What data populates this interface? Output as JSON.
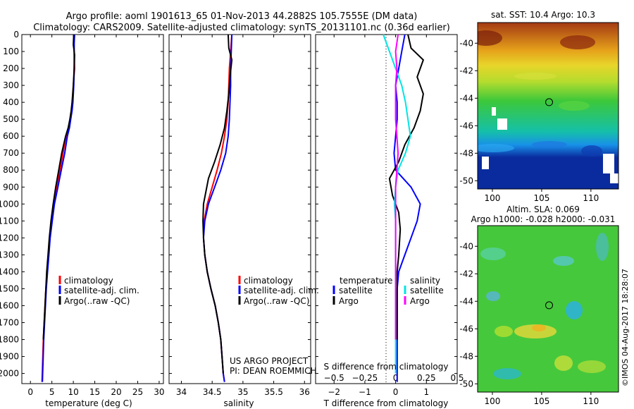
{
  "header": {
    "line1": "Argo profile: aoml 1901613_65 01-Nov-2013 44.2882S 105.7555E (DM data)",
    "line2": "Climatology: CARS2009. Satellite-adjusted climatology: synTS_20131101.nc (0.36d earlier)"
  },
  "colors": {
    "climatology": "#ff0000",
    "satellite": "#0000ff",
    "argo": "#000000",
    "satellite_s": "#00e5e5",
    "argo_s": "#ff00ff"
  },
  "chart_data": [
    {
      "id": "temperature",
      "type": "line",
      "xlabel": "temperature (deg C)",
      "ylabel": "",
      "xlim": [
        -2,
        31
      ],
      "ylim": [
        2060,
        0
      ],
      "xticks": [
        0,
        5,
        10,
        15,
        20,
        25,
        30
      ],
      "yticks": [
        0,
        100,
        200,
        300,
        400,
        500,
        600,
        700,
        800,
        900,
        1000,
        1100,
        1200,
        1300,
        1400,
        1500,
        1600,
        1700,
        1800,
        1900,
        2000
      ],
      "legend": [
        "climatology",
        "satellite-adj. clim.",
        "Argo(..raw -QC)"
      ],
      "legend_placement": "lower-center",
      "series": [
        {
          "name": "climatology",
          "color_key": "climatology",
          "x": [
            10.2,
            10.1,
            10.2,
            10.3,
            10.0,
            9.8,
            9.6,
            9.3,
            8.9,
            8.3,
            7.6,
            6.9,
            6.2,
            5.4,
            4.9,
            4.5,
            4.2,
            3.9,
            3.6,
            3.4,
            3.2,
            3.0,
            2.7
          ],
          "y": [
            0,
            50,
            100,
            200,
            300,
            400,
            450,
            500,
            550,
            600,
            700,
            800,
            900,
            1000,
            1100,
            1200,
            1300,
            1400,
            1500,
            1600,
            1700,
            1800,
            2050
          ]
        },
        {
          "name": "satellite-adj. clim.",
          "color_key": "satellite",
          "x": [
            10.3,
            10.2,
            10.2,
            10.2,
            10.1,
            9.9,
            9.7,
            9.4,
            9.1,
            8.6,
            8.0,
            7.2,
            6.4,
            5.6,
            5.1,
            4.6,
            4.3,
            4.0,
            3.7,
            3.5,
            3.3,
            3.1,
            2.8
          ],
          "y": [
            0,
            50,
            100,
            200,
            300,
            400,
            450,
            500,
            550,
            600,
            700,
            800,
            900,
            1000,
            1100,
            1200,
            1300,
            1400,
            1500,
            1600,
            1700,
            1800,
            2050
          ]
        },
        {
          "name": "Argo(..raw -QC)",
          "color_key": "argo",
          "x": [
            10.1,
            10.0,
            10.3,
            10.2,
            10.0,
            9.7,
            9.5,
            9.2,
            8.8,
            8.2,
            7.3,
            6.6,
            5.9,
            5.3,
            4.8,
            4.4,
            4.1,
            3.8,
            3.6,
            3.4,
            3.2,
            3.0
          ],
          "y": [
            0,
            60,
            120,
            200,
            300,
            400,
            450,
            500,
            550,
            600,
            700,
            800,
            900,
            1000,
            1100,
            1200,
            1300,
            1400,
            1500,
            1600,
            1700,
            1800
          ]
        }
      ]
    },
    {
      "id": "salinity",
      "type": "line",
      "xlabel": "salinity",
      "ylabel": "",
      "xlim": [
        33.8,
        36.1
      ],
      "ylim": [
        2060,
        0
      ],
      "xticks": [
        34,
        34.5,
        35,
        35.5,
        36
      ],
      "xticklabels": [
        "34",
        "34.5",
        "35",
        "35.5",
        "36"
      ],
      "legend": [
        "climatology",
        "satellite-adj. clim.",
        "Argo(..raw -QC)"
      ],
      "legend_placement": "lower-right",
      "annotation": [
        "US ARGO PROJECT",
        "PI: DEAN ROEMMICH"
      ],
      "series": [
        {
          "name": "climatology",
          "color_key": "climatology",
          "x": [
            34.82,
            34.8,
            34.78,
            34.77,
            34.76,
            34.74,
            34.7,
            34.65,
            34.58,
            34.5,
            34.42,
            34.37,
            34.36,
            34.38,
            34.42,
            34.48,
            34.55,
            34.6,
            34.64,
            34.66,
            34.68,
            34.7
          ],
          "y": [
            0,
            100,
            200,
            300,
            400,
            500,
            600,
            700,
            800,
            900,
            1000,
            1100,
            1200,
            1300,
            1400,
            1500,
            1600,
            1700,
            1800,
            1900,
            2000,
            2050
          ]
        },
        {
          "name": "satellite-adj. clim.",
          "color_key": "satellite",
          "x": [
            34.82,
            34.81,
            34.8,
            34.8,
            34.79,
            34.78,
            34.76,
            34.72,
            34.64,
            34.54,
            34.44,
            34.38,
            34.36,
            34.38,
            34.42,
            34.48,
            34.55,
            34.6,
            34.64,
            34.66,
            34.68,
            34.7
          ],
          "y": [
            0,
            100,
            200,
            300,
            400,
            500,
            600,
            700,
            800,
            900,
            1000,
            1100,
            1200,
            1300,
            1400,
            1500,
            1600,
            1700,
            1800,
            1900,
            2000,
            2050
          ]
        },
        {
          "name": "Argo(..raw -QC)",
          "color_key": "argo",
          "x": [
            34.76,
            34.77,
            34.82,
            34.79,
            34.77,
            34.74,
            34.7,
            34.63,
            34.54,
            34.44,
            34.36,
            34.35,
            34.36,
            34.38,
            34.42,
            34.48,
            34.55,
            34.6,
            34.64,
            34.66,
            34.68
          ],
          "y": [
            0,
            80,
            150,
            250,
            350,
            450,
            550,
            650,
            750,
            850,
            1000,
            1100,
            1200,
            1300,
            1400,
            1500,
            1600,
            1700,
            1800,
            1900,
            2000
          ]
        }
      ]
    },
    {
      "id": "difference",
      "type": "line",
      "xlabel": "T difference from climatology",
      "xlabel2": "S difference from climatology",
      "ylabel": "",
      "xlim": [
        -2.6,
        2.0
      ],
      "ylim": [
        2060,
        0
      ],
      "xticks": [
        -2,
        -1,
        0,
        1
      ],
      "xticklabels": [
        "−2",
        "−1",
        "0",
        "1"
      ],
      "xticks_s": [
        -0.5,
        -0.25,
        0,
        0.25,
        0.5
      ],
      "xticklabels_s": [
        "−0.5",
        "−0.25",
        "0",
        "0.25",
        "0.5"
      ],
      "s_per_t": 0.25,
      "legend": {
        "temperature_title": "temperature",
        "salinity_title": "salinity",
        "t_items": [
          "satellite",
          "Argo"
        ],
        "s_items": [
          "satellite",
          "Argo"
        ]
      },
      "legend_placement": "lower-center",
      "series": [
        {
          "name": "satellite",
          "kind": "T",
          "color_key": "satellite",
          "x": [
            0.3,
            0.2,
            0.1,
            0.0,
            0.05,
            0.05,
            0.0,
            -0.05,
            0.0,
            0.5,
            0.8,
            0.7,
            0.5,
            0.3,
            0.1,
            0.05,
            0.05,
            0.05,
            0.05,
            0.05,
            0.05,
            0.05
          ],
          "y": [
            0,
            100,
            200,
            300,
            400,
            500,
            600,
            700,
            800,
            900,
            1000,
            1100,
            1200,
            1300,
            1400,
            1500,
            1600,
            1700,
            1800,
            1900,
            2000,
            2050
          ]
        },
        {
          "name": "Argo",
          "kind": "T",
          "color_key": "argo",
          "x": [
            0.4,
            0.5,
            0.9,
            0.7,
            0.9,
            0.8,
            0.6,
            0.3,
            0.1,
            -0.2,
            -0.1,
            0.1,
            0.15,
            0.1,
            0.05,
            0.05,
            0.05,
            0.05,
            0.05
          ],
          "y": [
            0,
            80,
            150,
            250,
            350,
            450,
            550,
            650,
            750,
            850,
            950,
            1050,
            1150,
            1300,
            1400,
            1500,
            1600,
            1700,
            1800
          ]
        },
        {
          "name": "satellite",
          "kind": "S",
          "color_key": "satellite_s",
          "x": [
            -0.1,
            -0.05,
            0.0,
            0.05,
            0.08,
            0.1,
            0.12,
            0.08,
            0.02,
            0.0,
            -0.01,
            0.0,
            0.0,
            0.0,
            0.0,
            0.0,
            0.0,
            0.0,
            0.0,
            0.0,
            0.0
          ],
          "y": [
            0,
            100,
            200,
            300,
            400,
            500,
            600,
            700,
            800,
            900,
            1000,
            1100,
            1200,
            1300,
            1400,
            1500,
            1600,
            1700,
            1800,
            1900,
            2000
          ]
        },
        {
          "name": "Argo",
          "kind": "S",
          "color_key": "argo_s",
          "x": [
            0.02,
            0.0,
            0.01,
            0.0,
            0.0,
            0.0,
            0.01,
            0.02,
            0.01,
            0.0,
            0.0,
            0.0,
            0.0,
            0.0,
            0.0,
            0.0,
            0.0,
            0.0,
            0.0
          ],
          "y": [
            0,
            100,
            200,
            300,
            400,
            500,
            600,
            700,
            800,
            900,
            1000,
            1100,
            1200,
            1300,
            1400,
            1500,
            1600,
            1700,
            1800
          ]
        }
      ]
    },
    {
      "id": "sst_map",
      "type": "heatmap",
      "title": "sat. SST: 10.4  Argo: 10.3",
      "xlim": [
        98.5,
        112.8
      ],
      "ylim": [
        -50.6,
        -38.5
      ],
      "xticks": [
        100,
        105,
        110
      ],
      "yticks": [
        -40,
        -42,
        -44,
        -46,
        -48,
        -50
      ],
      "marker": {
        "lon": 105.7555,
        "lat": -44.2882
      },
      "bands": [
        {
          "lat": -38.5,
          "color": "#a43a14"
        },
        {
          "lat": -40.5,
          "color": "#e5a01a"
        },
        {
          "lat": -41.6,
          "color": "#e8d52a"
        },
        {
          "lat": -42.8,
          "color": "#b4dc2e"
        },
        {
          "lat": -44.2,
          "color": "#3cc83a"
        },
        {
          "lat": -46.4,
          "color": "#16c0a8"
        },
        {
          "lat": -47.4,
          "color": "#1890e8"
        },
        {
          "lat": -48.3,
          "color": "#0a2b9e"
        },
        {
          "lat": -50.6,
          "color": "#0a2b9e"
        }
      ]
    },
    {
      "id": "sla_map",
      "type": "heatmap",
      "title": "Altim. SLA: 0.069",
      "subtitle": "Argo h1000: -0.028 h2000: -0.031",
      "xlim": [
        98.5,
        112.8
      ],
      "ylim": [
        -50.6,
        -38.5
      ],
      "xticks": [
        100,
        105,
        110
      ],
      "yticks": [
        -40,
        -42,
        -44,
        -46,
        -48,
        -50
      ],
      "marker": {
        "lon": 105.7555,
        "lat": -44.2882
      },
      "base_color": "#46c83c"
    }
  ],
  "footer": {
    "stamp": "©IMOS 04-Aug-2017 18:28:07"
  }
}
